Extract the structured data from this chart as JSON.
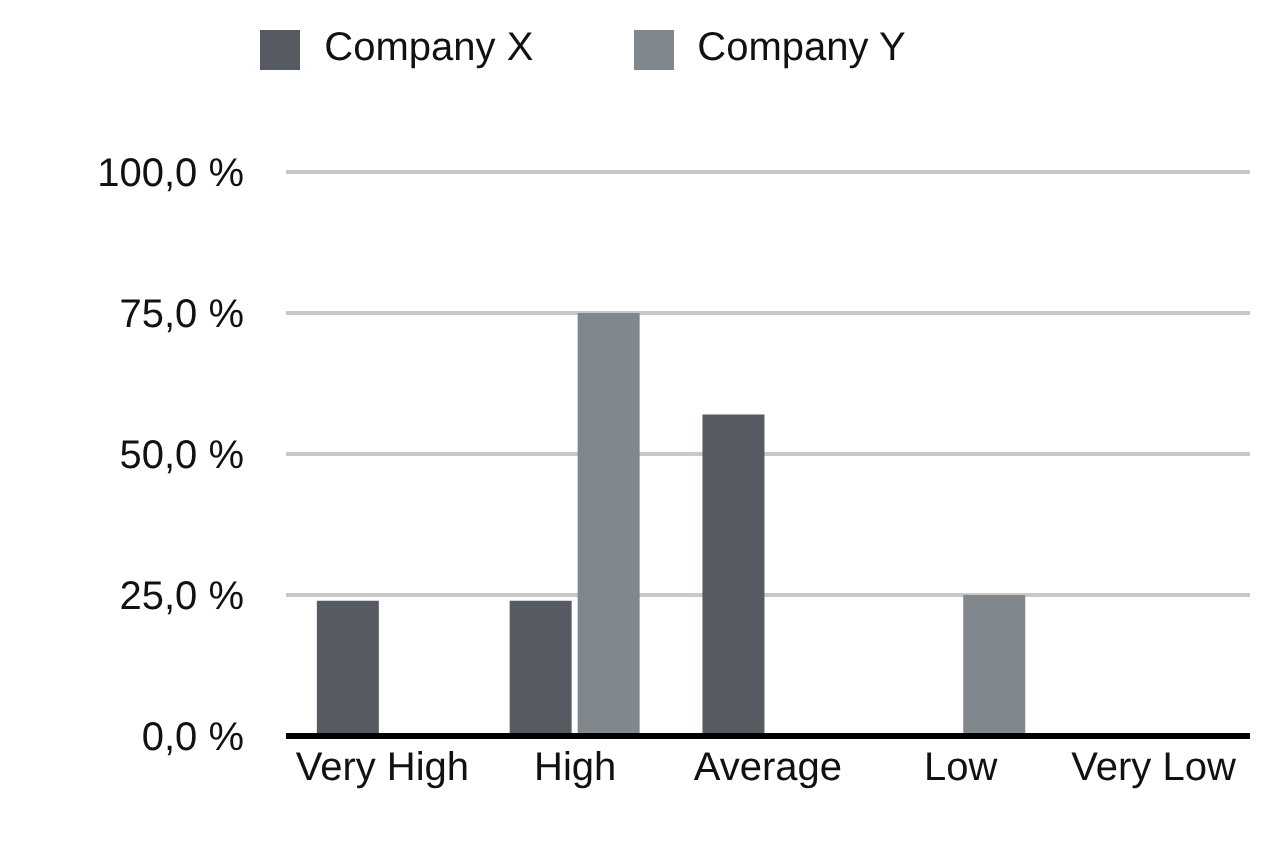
{
  "chart_data": {
    "type": "bar",
    "categories": [
      "Very High",
      "High",
      "Average",
      "Low",
      "Very Low"
    ],
    "series": [
      {
        "name": "Company X",
        "color": "#555b61",
        "values": [
          24,
          24,
          57,
          0,
          0
        ]
      },
      {
        "name": "Company Y",
        "color": "#80878d",
        "values": [
          0,
          75,
          0,
          25,
          0
        ]
      }
    ],
    "ylim": [
      0,
      100
    ],
    "yticks": [
      {
        "value": 0,
        "label": "0,0 %"
      },
      {
        "value": 25,
        "label": "25,0 %"
      },
      {
        "value": 50,
        "label": "50,0 %"
      },
      {
        "value": 75,
        "label": "75,0 %"
      },
      {
        "value": 100,
        "label": "100,0 %"
      }
    ],
    "grid": "y",
    "legend": "top"
  }
}
